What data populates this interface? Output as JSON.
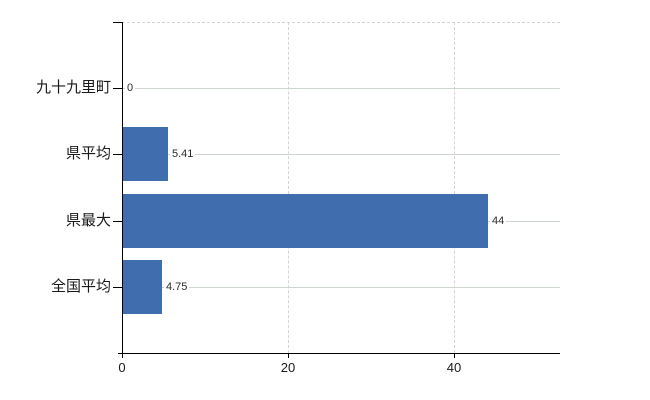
{
  "chart_data": {
    "type": "bar",
    "orientation": "horizontal",
    "categories": [
      "九十九里町",
      "県平均",
      "県最大",
      "全国平均"
    ],
    "values": [
      0,
      5.41,
      44,
      4.75
    ],
    "value_labels": [
      "0",
      "5.41",
      "44",
      "4.75"
    ],
    "xticks": [
      0,
      20,
      40
    ],
    "xtick_labels": [
      "0",
      "20",
      "40"
    ],
    "xlim": [
      0,
      52.8
    ],
    "grid": true,
    "legend": false,
    "colors": {
      "bar": "#3f6dae",
      "axis": "#000000",
      "h_grid": "#ccd6cc",
      "v_grid": "#d6d2d6",
      "background": "#ffffff",
      "text": "#1a1a1a"
    }
  }
}
